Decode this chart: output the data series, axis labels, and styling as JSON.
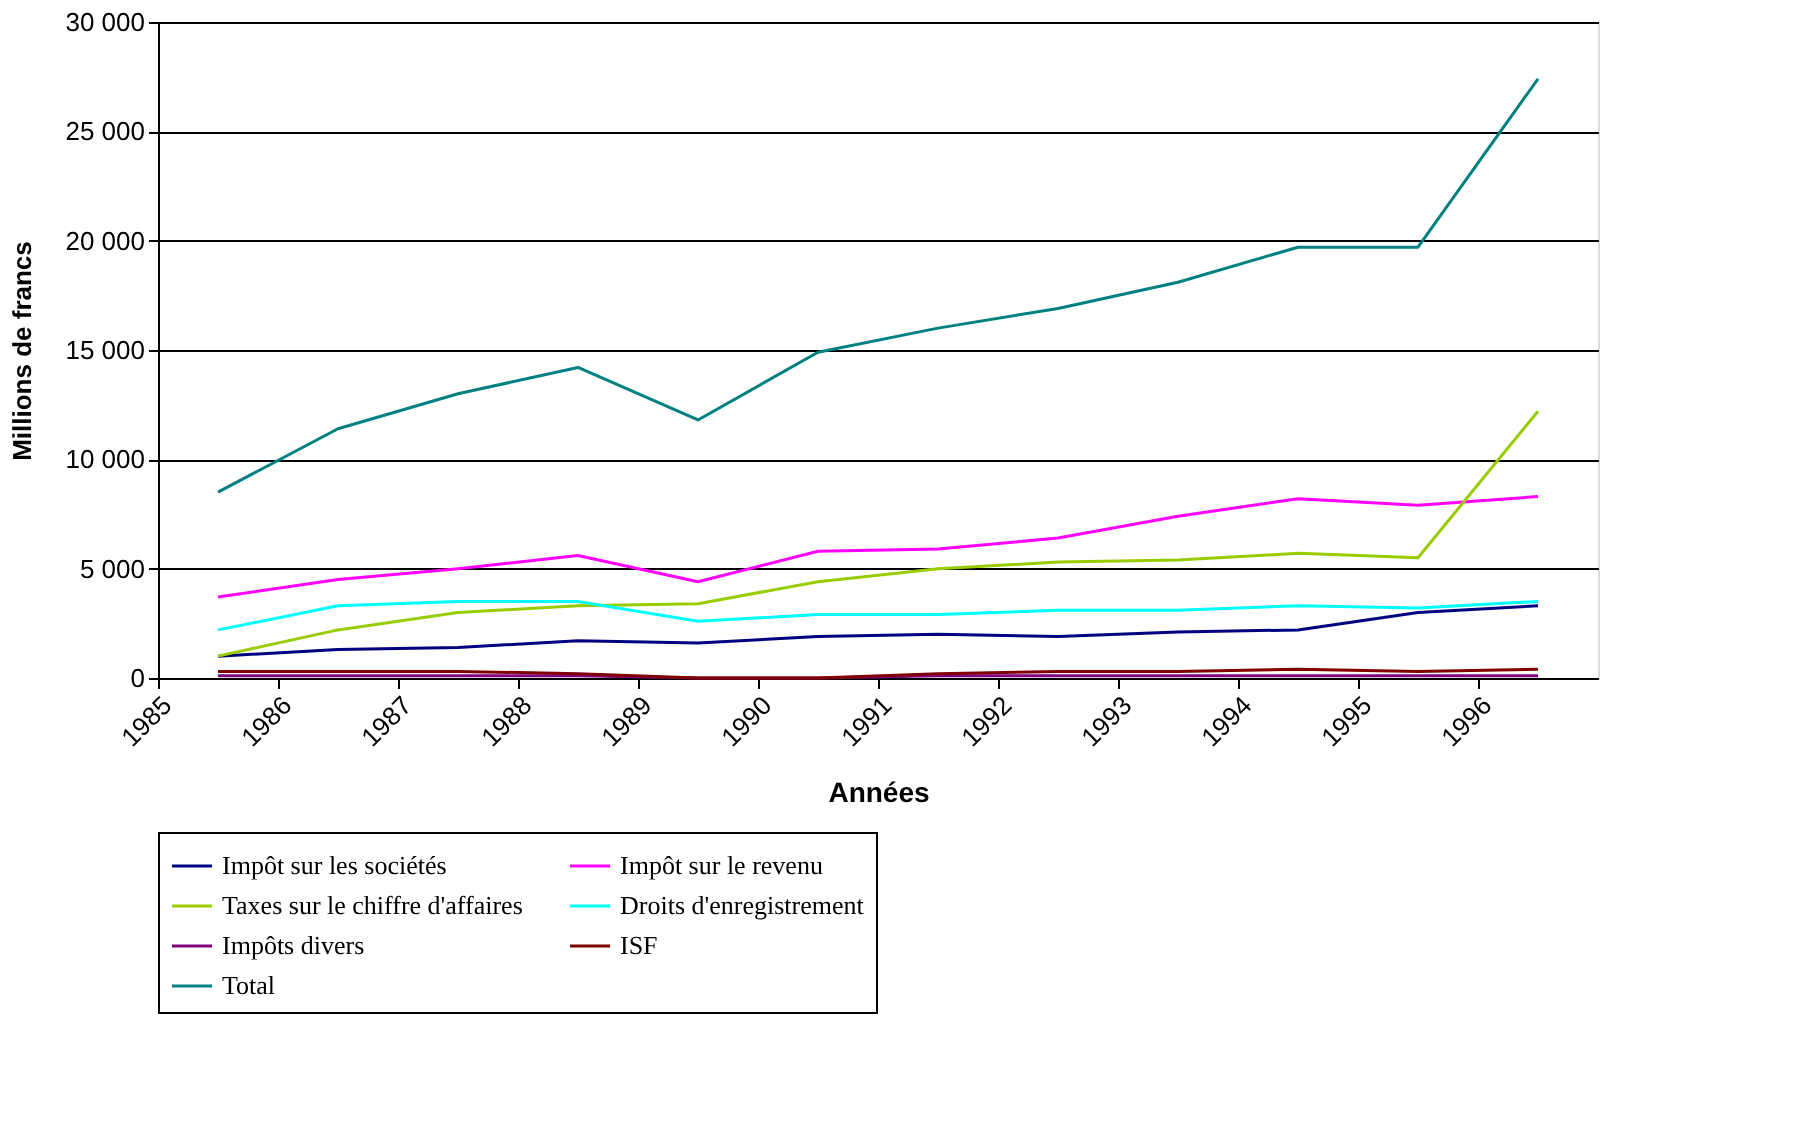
{
  "chart_data": {
    "type": "line",
    "xlabel": "Années",
    "ylabel": "Millions de francs",
    "x": [
      1985.5,
      1986.5,
      1987.5,
      1988.5,
      1989.5,
      1990.5,
      1991.5,
      1992.5,
      1993.5,
      1994.5,
      1995.5,
      1996.5
    ],
    "xlim": [
      1985,
      1997
    ],
    "xticks": [
      1985,
      1986,
      1987,
      1988,
      1989,
      1990,
      1991,
      1992,
      1993,
      1994,
      1995,
      1996
    ],
    "ylim": [
      0,
      30000
    ],
    "yticks": [
      {
        "value": 0,
        "label": "0"
      },
      {
        "value": 5000,
        "label": "5 000"
      },
      {
        "value": 10000,
        "label": "10 000"
      },
      {
        "value": 15000,
        "label": "15 000"
      },
      {
        "value": 20000,
        "label": "20 000"
      },
      {
        "value": 25000,
        "label": "25 000"
      },
      {
        "value": 30000,
        "label": "30 000"
      }
    ],
    "grid": "y",
    "legend": "bottom",
    "marker": "none",
    "line_style": "solid",
    "series": [
      {
        "name": "Impôt sur les sociétés",
        "color": "#000080",
        "values": [
          1000,
          1300,
          1400,
          1700,
          1600,
          1900,
          2000,
          1900,
          2100,
          2200,
          3000,
          3300
        ]
      },
      {
        "name": "Impôt sur le revenu",
        "color": "#ff00ff",
        "values": [
          3700,
          4500,
          5000,
          5600,
          4400,
          5800,
          5900,
          6400,
          7400,
          8200,
          7900,
          8300
        ]
      },
      {
        "name": "Taxes sur le chiffre d'affaires",
        "color": "#99cc00",
        "values": [
          1000,
          2200,
          3000,
          3300,
          3400,
          4400,
          5000,
          5300,
          5400,
          5700,
          5500,
          12200
        ]
      },
      {
        "name": "Droits d'enregistrement",
        "color": "#00ffff",
        "values": [
          2200,
          3300,
          3500,
          3500,
          2600,
          2900,
          2900,
          3100,
          3100,
          3300,
          3200,
          3500
        ]
      },
      {
        "name": "Impôts divers",
        "color": "#800080",
        "values": [
          100,
          100,
          100,
          100,
          0,
          0,
          100,
          100,
          100,
          100,
          100,
          100
        ]
      },
      {
        "name": "ISF",
        "color": "#800000",
        "values": [
          300,
          300,
          300,
          200,
          0,
          0,
          200,
          300,
          300,
          400,
          300,
          400
        ]
      },
      {
        "name": "Total",
        "color": "#008080",
        "values": [
          8500,
          11400,
          13000,
          14200,
          11800,
          14900,
          16000,
          16900,
          18100,
          19700,
          19700,
          27400
        ]
      }
    ]
  }
}
